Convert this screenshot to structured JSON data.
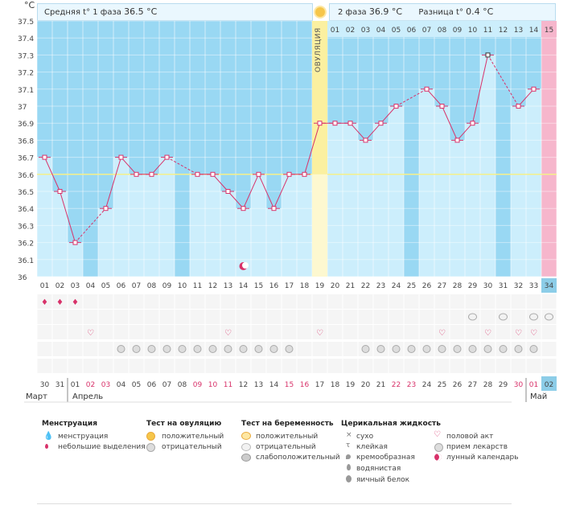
{
  "header": {
    "celsius_unit": "°C",
    "phase1_label": "Средняя t° 1 фаза",
    "phase1_value": "36.5 °C",
    "phase2_label": "2 фаза",
    "phase2_value": "36.9 °C",
    "diff_label": "Разница t°",
    "diff_value": "0.4 °C",
    "ovulation_label": "ОВУЛЯЦИЯ"
  },
  "chart_data": {
    "type": "line",
    "ylim": [
      36,
      37.5
    ],
    "y_ticks": [
      "37.5",
      "37.4",
      "37.3",
      "37.2",
      "37.1",
      "37",
      "36.9",
      "36.8",
      "36.7",
      "36.6",
      "36.5",
      "36.4",
      "36.3",
      "36.2",
      "36.1",
      "36"
    ],
    "x_cycle_days": [
      "01",
      "02",
      "03",
      "04",
      "05",
      "06",
      "07",
      "08",
      "09",
      "10",
      "11",
      "12",
      "13",
      "14",
      "15",
      "16",
      "17",
      "18",
      "19",
      "20",
      "21",
      "22",
      "23",
      "24",
      "25",
      "26",
      "27",
      "28",
      "29",
      "30",
      "31",
      "32",
      "33",
      "34"
    ],
    "phase2_day_labels": [
      "01",
      "02",
      "03",
      "04",
      "05",
      "06",
      "07",
      "08",
      "09",
      "10",
      "11",
      "12",
      "13",
      "14",
      "15"
    ],
    "coverline": 36.6,
    "ovulation_day": 19,
    "series": [
      {
        "values": [
          36.7,
          36.5,
          36.2,
          null,
          36.4,
          36.7,
          36.6,
          36.6,
          36.7,
          null,
          36.6,
          36.6,
          36.5,
          36.4,
          36.6,
          36.4,
          36.6,
          36.6,
          36.9,
          36.9,
          36.9,
          36.8,
          36.9,
          37.0,
          null,
          37.1,
          37.0,
          36.8,
          36.9,
          37.3,
          null,
          37.0,
          37.1
        ]
      }
    ]
  },
  "calendar": {
    "dates": [
      "30",
      "31",
      "01",
      "02",
      "03",
      "04",
      "05",
      "06",
      "07",
      "08",
      "09",
      "10",
      "11",
      "12",
      "13",
      "14",
      "15",
      "16",
      "17",
      "18",
      "19",
      "20",
      "21",
      "22",
      "23",
      "24",
      "25",
      "26",
      "27",
      "28",
      "29",
      "30",
      "01",
      "02"
    ],
    "month_marh": "Март",
    "month_april": "Апрель",
    "month_may": "Май"
  },
  "legend": {
    "menstruation_title": "Менструация",
    "menstruation_items": [
      "менструация",
      "небольшие выделения"
    ],
    "ovulation_test_title": "Тест на овуляцию",
    "ovulation_test_items": [
      "положительный",
      "отрицательный"
    ],
    "pregnancy_test_title": "Тест на беременность",
    "pregnancy_test_items": [
      "положительный",
      "отрицательный",
      "слабоположительный"
    ],
    "cervical_title": "Церикальная жидкость",
    "cervical_items": [
      "сухо",
      "клейкая",
      "кремообразная",
      "водянистая",
      "яичный белок"
    ],
    "other_items": [
      "половой акт",
      "прием лекарств",
      "лунный календарь"
    ]
  },
  "colors": {
    "phase_bg": "#99d8f3",
    "bar_fill": "#cceefc",
    "line": "#d8326a",
    "coverline": "#f5f08a",
    "ovulation": "#fbf0a0",
    "today": "#f6b6cc",
    "today_day": "#8ccde8"
  }
}
